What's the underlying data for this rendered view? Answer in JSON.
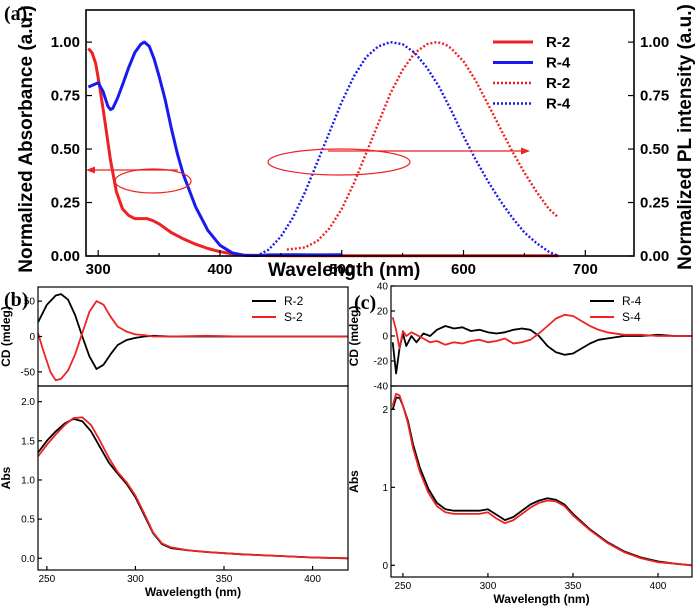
{
  "colors": {
    "red": "#ee2222",
    "blue": "#1a1aee",
    "black": "#000000"
  },
  "chart_data": [
    {
      "panel": "(a)",
      "type": "line",
      "xlabel": "Wavelength (nm)",
      "ylabel_left": "Normalized Absorbance (a.u.)",
      "ylabel_right": "Normalized PL intensity (a.u.)",
      "xlim": [
        290,
        740
      ],
      "ylim": [
        0,
        1.15
      ],
      "xticks": [
        300,
        400,
        500,
        600,
        700
      ],
      "yticks": [
        0.0,
        0.25,
        0.5,
        0.75,
        1.0
      ],
      "ytick_labels": [
        "0.00",
        "0.25",
        "0.50",
        "0.75",
        "1.00"
      ],
      "legend_position": "top-right",
      "series": [
        {
          "name": "R-2",
          "style": "solid",
          "color": "#ee2222",
          "x": [
            292,
            295,
            298,
            301,
            305,
            310,
            315,
            320,
            325,
            330,
            335,
            340,
            345,
            350,
            355,
            360,
            370,
            380,
            390,
            400,
            410,
            420,
            440,
            460,
            480,
            500,
            550,
            600,
            640,
            678
          ],
          "y": [
            0.97,
            0.95,
            0.9,
            0.8,
            0.65,
            0.45,
            0.3,
            0.22,
            0.19,
            0.175,
            0.175,
            0.175,
            0.165,
            0.15,
            0.13,
            0.11,
            0.08,
            0.055,
            0.035,
            0.02,
            0.01,
            0.004,
            0.002,
            0.001,
            0.001,
            0.001,
            0.001,
            0.001,
            0.001,
            0.001
          ]
        },
        {
          "name": "R-4",
          "style": "solid",
          "color": "#1a1aee",
          "x": [
            292,
            296,
            300,
            304,
            308,
            310,
            312,
            316,
            320,
            325,
            330,
            335,
            338,
            342,
            346,
            350,
            355,
            360,
            365,
            370,
            380,
            390,
            400,
            410,
            420,
            430,
            440,
            460,
            480,
            500
          ],
          "y": [
            0.79,
            0.8,
            0.81,
            0.77,
            0.7,
            0.685,
            0.69,
            0.74,
            0.8,
            0.88,
            0.95,
            0.99,
            1.0,
            0.98,
            0.92,
            0.84,
            0.73,
            0.6,
            0.48,
            0.38,
            0.23,
            0.12,
            0.05,
            0.015,
            0.003,
            0.002,
            0.005,
            0.006,
            0.005,
            0.006
          ]
        },
        {
          "name": "R-2",
          "style": "dotted",
          "color": "#ee2222",
          "axis": "right",
          "x": [
            455,
            470,
            480,
            490,
            500,
            510,
            520,
            530,
            540,
            550,
            560,
            570,
            578,
            585,
            590,
            600,
            610,
            620,
            630,
            640,
            650,
            660,
            670,
            678
          ],
          "y": [
            0.03,
            0.04,
            0.07,
            0.13,
            0.22,
            0.34,
            0.48,
            0.62,
            0.76,
            0.87,
            0.95,
            0.99,
            1.0,
            0.99,
            0.97,
            0.91,
            0.82,
            0.71,
            0.6,
            0.49,
            0.39,
            0.3,
            0.22,
            0.18
          ]
        },
        {
          "name": "R-4",
          "style": "dotted",
          "color": "#1a1aee",
          "axis": "right",
          "x": [
            430,
            440,
            450,
            460,
            470,
            480,
            490,
            500,
            510,
            520,
            530,
            540,
            550,
            560,
            570,
            580,
            590,
            600,
            610,
            620,
            630,
            640,
            650,
            660,
            670,
            678
          ],
          "y": [
            0.0,
            0.03,
            0.09,
            0.18,
            0.3,
            0.44,
            0.58,
            0.72,
            0.84,
            0.93,
            0.98,
            1.0,
            0.99,
            0.95,
            0.88,
            0.79,
            0.68,
            0.56,
            0.45,
            0.35,
            0.26,
            0.18,
            0.11,
            0.06,
            0.02,
            0.0
          ]
        }
      ]
    },
    {
      "panel": "(b)",
      "type": "line",
      "xlabel": "Wavelength (nm)",
      "xlim": [
        245,
        420
      ],
      "xticks": [
        250,
        300,
        350,
        400
      ],
      "legend_position": "top-right",
      "subplots": [
        {
          "ylabel": "CD (mdeg)",
          "ylim": [
            -70,
            70
          ],
          "yticks": [
            -50,
            0,
            50
          ],
          "series": [
            {
              "name": "R-2",
              "color": "#000000",
              "x": [
                245,
                250,
                255,
                258,
                262,
                266,
                270,
                274,
                278,
                282,
                286,
                290,
                295,
                300,
                305,
                310,
                320,
                340,
                360,
                380,
                400,
                420
              ],
              "y": [
                20,
                45,
                58,
                60,
                52,
                30,
                0,
                -28,
                -46,
                -40,
                -25,
                -12,
                -5,
                -2,
                0,
                1,
                0,
                0,
                0,
                0,
                0,
                0
              ]
            },
            {
              "name": "S-2",
              "color": "#ee2222",
              "x": [
                245,
                248,
                252,
                255,
                258,
                262,
                266,
                270,
                274,
                278,
                282,
                286,
                290,
                295,
                300,
                305,
                310,
                320,
                340,
                360,
                380,
                400,
                420
              ],
              "y": [
                5,
                -20,
                -50,
                -62,
                -60,
                -48,
                -25,
                5,
                35,
                50,
                45,
                28,
                14,
                7,
                3,
                2,
                0,
                0,
                1,
                0,
                0,
                0,
                0
              ]
            }
          ]
        },
        {
          "ylabel": "Abs",
          "ylim": [
            -0.15,
            2.2
          ],
          "yticks": [
            0.0,
            0.5,
            1.0,
            1.5,
            2.0
          ],
          "ytick_labels": [
            "0.0",
            "0.5",
            "1.0",
            "1.5",
            "2.0"
          ],
          "series": [
            {
              "name": "R-2",
              "color": "#000000",
              "x": [
                245,
                250,
                255,
                260,
                265,
                270,
                275,
                280,
                285,
                290,
                295,
                300,
                305,
                310,
                315,
                320,
                330,
                340,
                360,
                380,
                400,
                420
              ],
              "y": [
                1.35,
                1.5,
                1.62,
                1.72,
                1.78,
                1.75,
                1.62,
                1.42,
                1.22,
                1.08,
                0.95,
                0.78,
                0.55,
                0.32,
                0.18,
                0.13,
                0.1,
                0.08,
                0.05,
                0.03,
                0.01,
                0.0
              ]
            },
            {
              "name": "S-2",
              "color": "#ee2222",
              "x": [
                245,
                250,
                255,
                260,
                265,
                270,
                275,
                280,
                285,
                290,
                295,
                300,
                305,
                310,
                315,
                320,
                330,
                340,
                360,
                380,
                400,
                420
              ],
              "y": [
                1.3,
                1.45,
                1.58,
                1.7,
                1.79,
                1.8,
                1.7,
                1.5,
                1.28,
                1.1,
                0.97,
                0.8,
                0.57,
                0.33,
                0.19,
                0.14,
                0.1,
                0.08,
                0.05,
                0.03,
                0.01,
                0.0
              ]
            }
          ]
        }
      ]
    },
    {
      "panel": "(c)",
      "type": "line",
      "xlabel": "Wavelength (nm)",
      "xlim": [
        243,
        420
      ],
      "xticks": [
        250,
        300,
        350,
        400
      ],
      "legend_position": "top-right",
      "subplots": [
        {
          "ylabel": "CD (mdeg)",
          "ylim": [
            -40,
            40
          ],
          "yticks": [
            -40,
            -20,
            0,
            20,
            40
          ],
          "series": [
            {
              "name": "R-4",
              "color": "#000000",
              "x": [
                244,
                246,
                248,
                250,
                252,
                255,
                258,
                262,
                266,
                270,
                275,
                280,
                285,
                290,
                295,
                300,
                305,
                310,
                315,
                320,
                325,
                330,
                335,
                340,
                345,
                350,
                355,
                360,
                365,
                370,
                380,
                390,
                400,
                410,
                420
              ],
              "y": [
                -5,
                -30,
                -10,
                2,
                -8,
                0,
                -5,
                2,
                0,
                5,
                8,
                6,
                7,
                4,
                5,
                3,
                2,
                3,
                5,
                6,
                5,
                0,
                -8,
                -13,
                -15,
                -14,
                -10,
                -6,
                -3,
                -2,
                0,
                0,
                1,
                0,
                0
              ]
            },
            {
              "name": "S-4",
              "color": "#ee2222",
              "x": [
                244,
                246,
                248,
                250,
                252,
                255,
                258,
                262,
                266,
                270,
                275,
                280,
                285,
                290,
                295,
                300,
                305,
                310,
                315,
                320,
                325,
                330,
                335,
                340,
                345,
                350,
                355,
                360,
                365,
                370,
                380,
                390,
                400,
                410,
                420
              ],
              "y": [
                15,
                5,
                -10,
                4,
                0,
                3,
                1,
                -2,
                -5,
                -4,
                -7,
                -5,
                -6,
                -4,
                -3,
                -5,
                -4,
                -2,
                -6,
                -5,
                -3,
                2,
                8,
                14,
                17,
                16,
                12,
                8,
                5,
                3,
                1,
                1,
                0,
                0,
                0
              ]
            }
          ]
        },
        {
          "ylabel": "Abs",
          "ylim": [
            -0.15,
            2.3
          ],
          "yticks": [
            0,
            1,
            2
          ],
          "series": [
            {
              "name": "R-4",
              "color": "#000000",
              "x": [
                244,
                246,
                248,
                250,
                253,
                256,
                260,
                265,
                270,
                275,
                280,
                285,
                290,
                295,
                300,
                305,
                310,
                315,
                320,
                325,
                330,
                335,
                340,
                345,
                350,
                360,
                370,
                380,
                390,
                400,
                410,
                420
              ],
              "y": [
                2.0,
                2.15,
                2.15,
                2.05,
                1.85,
                1.55,
                1.25,
                0.98,
                0.8,
                0.72,
                0.7,
                0.7,
                0.7,
                0.7,
                0.72,
                0.65,
                0.58,
                0.62,
                0.7,
                0.78,
                0.83,
                0.86,
                0.84,
                0.78,
                0.66,
                0.46,
                0.3,
                0.18,
                0.1,
                0.05,
                0.02,
                0.0
              ]
            },
            {
              "name": "S-4",
              "color": "#ee2222",
              "x": [
                244,
                246,
                248,
                250,
                253,
                256,
                260,
                265,
                270,
                275,
                280,
                285,
                290,
                295,
                300,
                305,
                310,
                315,
                320,
                325,
                330,
                335,
                340,
                345,
                350,
                360,
                370,
                380,
                390,
                400,
                410,
                420
              ],
              "y": [
                2.05,
                2.2,
                2.18,
                2.05,
                1.82,
                1.5,
                1.2,
                0.93,
                0.76,
                0.68,
                0.66,
                0.66,
                0.66,
                0.66,
                0.68,
                0.6,
                0.54,
                0.58,
                0.66,
                0.74,
                0.8,
                0.83,
                0.82,
                0.76,
                0.64,
                0.45,
                0.29,
                0.17,
                0.09,
                0.04,
                0.02,
                0.0
              ]
            }
          ]
        }
      ]
    }
  ]
}
